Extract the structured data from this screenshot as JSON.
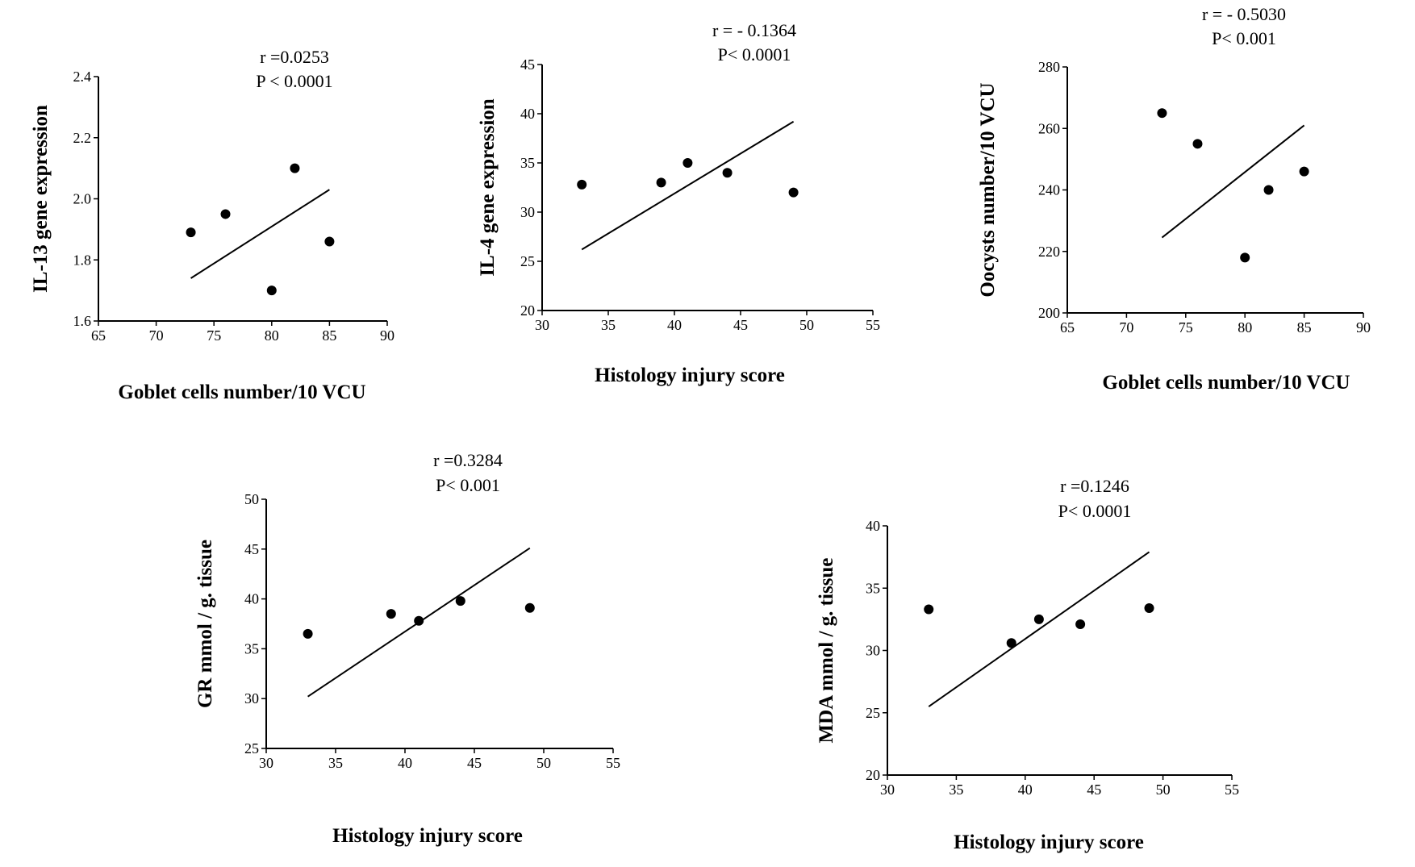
{
  "chart_data": [
    {
      "type": "scatter",
      "title": "",
      "xlabel": "Goblet cells number/10 VCU",
      "ylabel": "IL-13 gene expression",
      "xlim": [
        65,
        90
      ],
      "ylim": [
        1.6,
        2.4
      ],
      "xticks": [
        "65",
        "70",
        "75",
        "80",
        "85",
        "90"
      ],
      "yticks": [
        "1.6",
        "1.8",
        "2.0",
        "2.2",
        "2.4"
      ],
      "x": [
        73,
        76,
        80,
        82,
        85
      ],
      "y": [
        1.89,
        1.95,
        1.7,
        2.1,
        1.86
      ],
      "fit_line": [
        [
          73,
          1.74
        ],
        [
          85,
          2.03
        ]
      ],
      "annotations": [
        "r =0.0253",
        "P < 0.0001"
      ],
      "grid": false,
      "legend": "none"
    },
    {
      "type": "scatter",
      "title": "",
      "xlabel": "Histology injury score",
      "ylabel": "IL-4 gene expression",
      "xlim": [
        30,
        55
      ],
      "ylim": [
        20,
        45
      ],
      "xticks": [
        "30",
        "35",
        "40",
        "45",
        "50",
        "55"
      ],
      "yticks": [
        "20",
        "25",
        "30",
        "35",
        "40",
        "45"
      ],
      "x": [
        33,
        39,
        41,
        44,
        49
      ],
      "y": [
        32.8,
        33.0,
        35.0,
        34.0,
        32.0
      ],
      "fit_line": [
        [
          33,
          26.2
        ],
        [
          49,
          39.2
        ]
      ],
      "annotations": [
        "r = - 0.1364",
        "P< 0.0001"
      ],
      "grid": false,
      "legend": "none"
    },
    {
      "type": "scatter",
      "title": "",
      "xlabel": "Goblet cells number/10 VCU",
      "ylabel": "Oocysts number/10 VCU",
      "xlim": [
        65,
        90
      ],
      "ylim": [
        200,
        280
      ],
      "xticks": [
        "65",
        "70",
        "75",
        "80",
        "85",
        "90"
      ],
      "yticks": [
        "200",
        "220",
        "240",
        "260",
        "280"
      ],
      "x": [
        73,
        76,
        80,
        82,
        85
      ],
      "y": [
        265,
        255,
        218,
        240,
        246
      ],
      "fit_line": [
        [
          73,
          224.5
        ],
        [
          85,
          261
        ]
      ],
      "annotations": [
        "r = - 0.5030",
        "P< 0.001"
      ],
      "grid": false,
      "legend": "none"
    },
    {
      "type": "scatter",
      "title": "",
      "xlabel": "Histology injury score",
      "ylabel": "GR mmol / g. tissue",
      "xlim": [
        30,
        55
      ],
      "ylim": [
        25,
        50
      ],
      "xticks": [
        "30",
        "35",
        "40",
        "45",
        "50",
        "55"
      ],
      "yticks": [
        "25",
        "30",
        "35",
        "40",
        "45",
        "50"
      ],
      "x": [
        33,
        39,
        41,
        44,
        49
      ],
      "y": [
        36.5,
        38.5,
        37.8,
        39.8,
        39.1
      ],
      "fit_line": [
        [
          33,
          30.2
        ],
        [
          49,
          45.1
        ]
      ],
      "annotations": [
        "r =0.3284",
        "P< 0.001"
      ],
      "grid": false,
      "legend": "none"
    },
    {
      "type": "scatter",
      "title": "",
      "xlabel": "Histology injury score",
      "ylabel": "MDA mmol / g. tissue",
      "xlim": [
        30,
        55
      ],
      "ylim": [
        20,
        40
      ],
      "xticks": [
        "30",
        "35",
        "40",
        "45",
        "50",
        "55"
      ],
      "yticks": [
        "20",
        "25",
        "30",
        "35",
        "40"
      ],
      "x": [
        33,
        39,
        41,
        44,
        49
      ],
      "y": [
        33.3,
        30.6,
        32.5,
        32.1,
        33.4
      ],
      "fit_line": [
        [
          33,
          25.5
        ],
        [
          49,
          37.9
        ]
      ],
      "annotations": [
        "r =0.1246",
        "P< 0.0001"
      ],
      "grid": false,
      "legend": "none"
    }
  ]
}
